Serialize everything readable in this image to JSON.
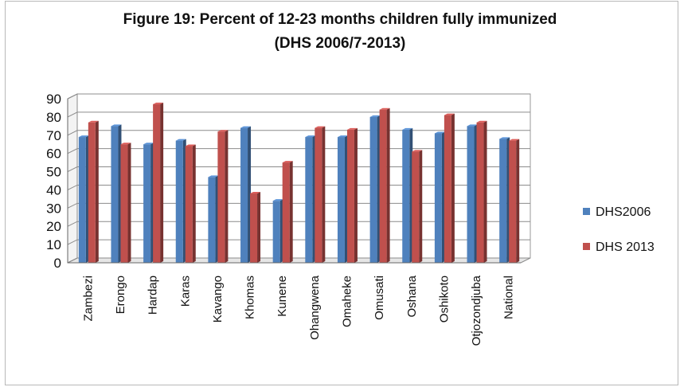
{
  "chart_data": {
    "type": "bar",
    "title": "Figure 19: Percent of 12-23 months children fully immunized",
    "subtitle": "(DHS 2006/7-2013)",
    "xlabel": "",
    "ylabel": "",
    "ylim": [
      0,
      90
    ],
    "yticks": [
      0,
      10,
      20,
      30,
      40,
      50,
      60,
      70,
      80,
      90
    ],
    "grid": true,
    "legend_position": "right",
    "categories": [
      "Zambezi",
      "Erongo",
      "Hardap",
      "Karas",
      "Kavango",
      "Khomas",
      "Kunene",
      "Ohangwena",
      "Omaheke",
      "Omusati",
      "Oshana",
      "Oshikoto",
      "Otjozondjuba",
      "National"
    ],
    "series": [
      {
        "name": "DHS2006",
        "color": "#4f81bd",
        "values": [
          69,
          75,
          65,
          67,
          47,
          74,
          34,
          69,
          69,
          80,
          73,
          71,
          75,
          68
        ]
      },
      {
        "name": "DHS 2013",
        "color": "#c0504d",
        "values": [
          77,
          65,
          87,
          64,
          72,
          38,
          55,
          74,
          73,
          84,
          61,
          81,
          77,
          67
        ]
      }
    ]
  }
}
